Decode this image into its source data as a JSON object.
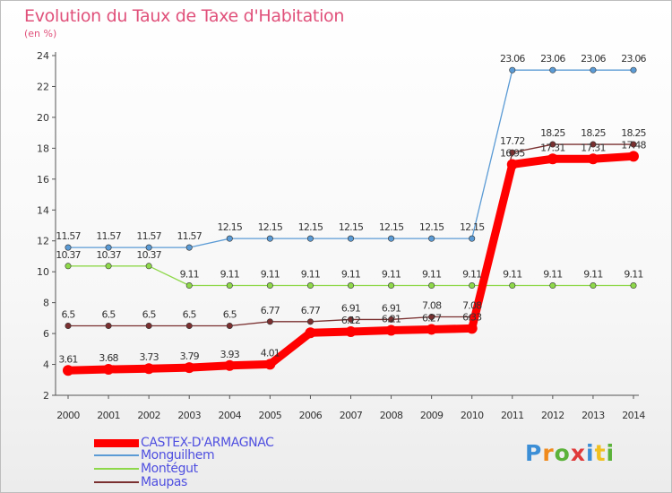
{
  "title": "Evolution du Taux de Taxe d'Habitation",
  "subtitle": "(en %)",
  "logo": {
    "letters": [
      "P",
      "r",
      "o",
      "x",
      "i",
      "t",
      "i"
    ],
    "colors": [
      "#3b8ed6",
      "#f08a1c",
      "#5bb23a",
      "#e03a3a",
      "#3b8ed6",
      "#f0c020",
      "#5bb23a"
    ]
  },
  "chart_data": {
    "type": "line",
    "title": "Evolution du Taux de Taxe d'Habitation",
    "ylabel": "(en %)",
    "xlabel": "",
    "x": [
      "2000",
      "2001",
      "2002",
      "2003",
      "2004",
      "2005",
      "2006",
      "2007",
      "2008",
      "2009",
      "2010",
      "2011",
      "2012",
      "2013",
      "2014"
    ],
    "ylim": [
      2,
      24
    ],
    "yticks": [
      2,
      4,
      6,
      8,
      10,
      12,
      14,
      16,
      18,
      20,
      22,
      24
    ],
    "grid": false,
    "legend": "bottom-left",
    "series": [
      {
        "name": "CASTEX-D'ARMAGNAC",
        "color": "#ff0000",
        "values": [
          3.61,
          3.68,
          3.73,
          3.79,
          3.93,
          4.01,
          6.05,
          6.12,
          6.21,
          6.27,
          6.33,
          16.95,
          17.31,
          17.31,
          17.48
        ],
        "labels": [
          "3.61",
          "3.68",
          "3.73",
          "3.79",
          "3.93",
          "4.01",
          "",
          "6.12",
          "6.21",
          "6.27",
          "6.33",
          "16.95",
          "17.31",
          "17.31",
          "17.48"
        ]
      },
      {
        "name": "Monguilhem",
        "color": "#5b9bd5",
        "values": [
          11.57,
          11.57,
          11.57,
          11.57,
          12.15,
          12.15,
          12.15,
          12.15,
          12.15,
          12.15,
          12.15,
          23.06,
          23.06,
          23.06,
          23.06
        ],
        "labels": [
          "11.57",
          "11.57",
          "11.57",
          "11.57",
          "12.15",
          "12.15",
          "12.15",
          "12.15",
          "12.15",
          "12.15",
          "12.15",
          "23.06",
          "23.06",
          "23.06",
          "23.06"
        ]
      },
      {
        "name": "Montégut",
        "color": "#8ed84a",
        "values": [
          10.37,
          10.37,
          10.37,
          9.11,
          9.11,
          9.11,
          9.11,
          9.11,
          9.11,
          9.11,
          9.11,
          9.11,
          9.11,
          9.11,
          9.11
        ],
        "labels": [
          "10.37",
          "10.37",
          "10.37",
          "9.11",
          "9.11",
          "9.11",
          "9.11",
          "9.11",
          "9.11",
          "9.11",
          "9.11",
          "9.11",
          "9.11",
          "9.11",
          "9.11"
        ]
      },
      {
        "name": "Maupas",
        "color": "#7a3030",
        "values": [
          6.5,
          6.5,
          6.5,
          6.5,
          6.5,
          6.77,
          6.77,
          6.91,
          6.91,
          7.08,
          7.08,
          17.72,
          18.25,
          18.25,
          18.25
        ],
        "labels": [
          "6.5",
          "6.5",
          "6.5",
          "6.5",
          "6.5",
          "6.77",
          "6.77",
          "6.91",
          "6.91",
          "7.08",
          "7.08",
          "17.72",
          "18.25",
          "18.25",
          "18.25"
        ]
      }
    ]
  }
}
